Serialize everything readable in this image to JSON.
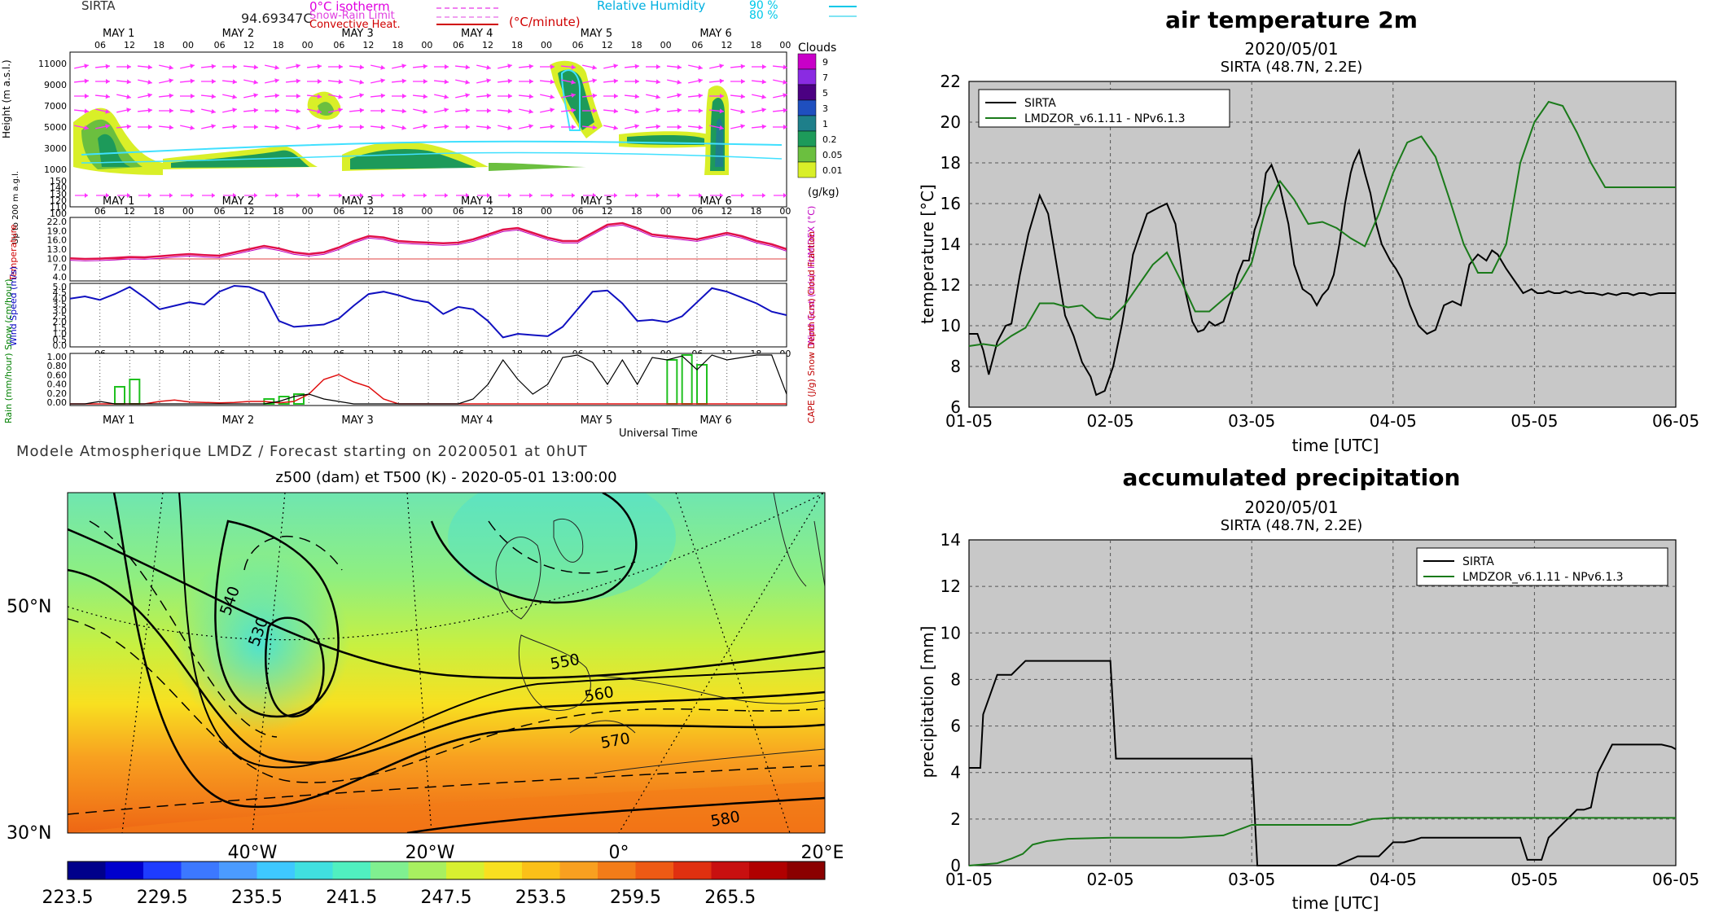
{
  "meteogram": {
    "header": {
      "station": "SIRTA",
      "value": "94.69347C",
      "legend_left": [
        "0°C isotherm",
        "Snow-Rain Limit",
        "Convective Heat."
      ],
      "legend_unit": "(°C/minute)",
      "legend_right": "Relative Humidity",
      "rh_levels": [
        "90 %",
        "80 %"
      ]
    },
    "day_labels": [
      "MAY 1",
      "MAY 2",
      "MAY 3",
      "MAY 4",
      "MAY 5",
      "MAY 6"
    ],
    "hour_labels": [
      "06",
      "12",
      "18",
      "00"
    ],
    "panel1": {
      "ylabel": "Height (m a.s.l.)",
      "yticks": [
        "11000",
        "9000",
        "7000",
        "5000",
        "3000",
        "1000"
      ],
      "ylabel_low": "Up to 200 m a.g.l.",
      "yticks_low": [
        "150",
        "140",
        "130",
        "120",
        "110",
        "100"
      ],
      "clouds_title": "Clouds",
      "clouds_scale": [
        "9",
        "7",
        "5",
        "3",
        "1",
        "0.2",
        "0.05",
        "0.01"
      ],
      "clouds_unit": "(g/kg)",
      "clouds_colors": [
        "#c800c8",
        "#8a2be2",
        "#4b0082",
        "#1f4fbf",
        "#1e7f8a",
        "#1d9a5a",
        "#6bbf3f",
        "#d9ef28"
      ]
    },
    "panel2": {
      "ylabel": "Temperature",
      "yticks": [
        "22.0",
        "19.0",
        "16.0",
        "13.0",
        "10.0",
        "7.0",
        "4.0"
      ],
      "right_label": "HUMIDEX (°C)",
      "temperature": [
        10.2,
        10.0,
        10.1,
        10.3,
        10.6,
        10.5,
        10.8,
        11.2,
        11.5,
        11.2,
        11.0,
        12.0,
        13.0,
        14.0,
        13.2,
        12.0,
        11.5,
        12.0,
        13.5,
        15.5,
        17.0,
        16.6,
        15.5,
        15.2,
        15.0,
        14.8,
        15.0,
        16.0,
        17.5,
        19.0,
        19.5,
        18.0,
        16.5,
        15.5,
        15.5,
        18.0,
        20.5,
        21.0,
        19.5,
        17.5,
        17.0,
        16.5,
        16.0,
        17.0,
        18.0,
        17.0,
        15.5,
        14.5,
        13.0
      ]
    },
    "panel3": {
      "ylabel": "Wind Speed (m/s)",
      "yticks": [
        "5.0",
        "4.5",
        "4.0",
        "3.5",
        "3.0",
        "2.5",
        "2.0",
        "1.5",
        "1.0",
        "0.5",
        "0.0"
      ],
      "right_label": "Wind Gust (m/s)",
      "wind": [
        3.9,
        4.1,
        3.8,
        4.3,
        4.9,
        4.0,
        3.0,
        3.3,
        3.6,
        3.4,
        4.5,
        5.0,
        4.9,
        4.4,
        2.0,
        1.5,
        1.6,
        1.7,
        2.2,
        3.3,
        4.3,
        4.5,
        4.2,
        3.8,
        3.6,
        2.6,
        3.2,
        3.0,
        2.0,
        0.6,
        0.9,
        0.8,
        0.7,
        1.5,
        3.0,
        4.5,
        4.6,
        3.5,
        2.0,
        2.1,
        1.9,
        2.4,
        3.6,
        4.8,
        4.5,
        4.0,
        3.5,
        2.8,
        2.5
      ]
    },
    "panel4": {
      "yticks": [
        "1.00",
        "0.80",
        "0.60",
        "0.40",
        "0.20",
        "0.00"
      ],
      "left_label": "Rain (mm/hour) Snow (cm/hour)",
      "right_label": "CAPE (J/g) Snow Depth (cm) Cloud Fraction",
      "xlabel": "Universal Time",
      "cloud_fraction": [
        0,
        0,
        0.05,
        0,
        0,
        0,
        0,
        0,
        0,
        0,
        0,
        0,
        0,
        0,
        0.05,
        0.15,
        0.2,
        0.1,
        0.05,
        0,
        0,
        0,
        0,
        0,
        0,
        0,
        0,
        0.1,
        0.4,
        0.9,
        0.5,
        0.2,
        0.4,
        0.95,
        1.0,
        0.85,
        0.4,
        0.9,
        0.4,
        0.95,
        0.9,
        0.98,
        0.7,
        1.0,
        0.9,
        0.95,
        1.0,
        1.0,
        0.2
      ],
      "cape": [
        0,
        0,
        0,
        0,
        0,
        0,
        0.05,
        0.08,
        0.04,
        0.03,
        0.02,
        0.03,
        0.05,
        0.05,
        0.02,
        0.05,
        0.2,
        0.5,
        0.6,
        0.45,
        0.35,
        0.1,
        0,
        0,
        0,
        0,
        0,
        0,
        0,
        0,
        0,
        0,
        0,
        0,
        0,
        0,
        0,
        0,
        0,
        0,
        0,
        0,
        0,
        0,
        0,
        0,
        0,
        0,
        0
      ],
      "rain_bars": [
        {
          "i": 3,
          "v": 0.35
        },
        {
          "i": 4,
          "v": 0.5
        },
        {
          "i": 13,
          "v": 0.1
        },
        {
          "i": 14,
          "v": 0.15
        },
        {
          "i": 15,
          "v": 0.2
        },
        {
          "i": 40,
          "v": 0.9
        },
        {
          "i": 41,
          "v": 1.0
        },
        {
          "i": 42,
          "v": 0.8
        }
      ]
    },
    "footer": "Modele Atmospherique LMDZ / Forecast starting on 20200501 at 0hUT"
  },
  "map": {
    "title": "z500 (dam) et T500 (K) - 2020-05-01 13:00:00",
    "lat_labels": [
      "50°N",
      "30°N"
    ],
    "lon_labels": [
      "40°W",
      "20°W",
      "0°",
      "20°E"
    ],
    "contour_labels": [
      "540",
      "530",
      "550",
      "560",
      "570",
      "580"
    ],
    "colorbar_ticks": [
      "223.5",
      "229.5",
      "235.5",
      "241.5",
      "247.5",
      "253.5",
      "259.5",
      "265.5"
    ],
    "colorbar_colors": [
      "#00008b",
      "#0000cd",
      "#1e3cff",
      "#3c78ff",
      "#4b9bff",
      "#3ec8ff",
      "#40e0e0",
      "#50f0c0",
      "#80f090",
      "#a8f060",
      "#d8f030",
      "#f8e020",
      "#fbc018",
      "#f8a020",
      "#f37c18",
      "#ee5a14",
      "#e03010",
      "#c81010",
      "#b00000",
      "#8b0000"
    ]
  },
  "chart_data": [
    {
      "type": "line",
      "title": "air temperature 2m",
      "subtitle": "2020/05/01",
      "subtitle2": "SIRTA (48.7N, 2.2E)",
      "xlabel": "time [UTC]",
      "ylabel": "temperature [°C]",
      "ylim": [
        6,
        22
      ],
      "xlim": [
        0,
        5
      ],
      "x_tick_labels": [
        "01-05",
        "02-05",
        "03-05",
        "04-05",
        "05-05",
        "06-05"
      ],
      "y_tick_labels": [
        "6",
        "8",
        "10",
        "12",
        "14",
        "16",
        "18",
        "20",
        "22"
      ],
      "grid": true,
      "legend": "top-left",
      "series": [
        {
          "name": "SIRTA",
          "color": "#000000",
          "x": [
            0,
            0.06,
            0.1,
            0.14,
            0.2,
            0.26,
            0.3,
            0.36,
            0.42,
            0.5,
            0.56,
            0.62,
            0.68,
            0.74,
            0.8,
            0.86,
            0.9,
            0.96,
            1.02,
            1.08,
            1.12,
            1.16,
            1.2,
            1.26,
            1.34,
            1.4,
            1.46,
            1.52,
            1.58,
            1.62,
            1.66,
            1.7,
            1.74,
            1.8,
            1.86,
            1.9,
            1.94,
            1.98,
            2.02,
            2.06,
            2.1,
            2.14,
            2.2,
            2.26,
            2.3,
            2.36,
            2.42,
            2.46,
            2.5,
            2.54,
            2.58,
            2.62,
            2.66,
            2.7,
            2.72,
            2.76,
            2.8,
            2.84,
            2.88,
            2.92,
            2.98,
            3.02,
            3.06,
            3.12,
            3.18,
            3.24,
            3.3,
            3.36,
            3.42,
            3.48,
            3.54,
            3.6,
            3.66,
            3.7,
            3.74,
            3.8,
            3.86,
            3.92,
            3.98,
            4.02,
            4.06,
            4.1,
            4.14,
            4.18,
            4.22,
            4.26,
            4.32,
            4.36,
            4.42,
            4.48,
            4.52,
            4.58,
            4.62,
            4.66,
            4.7,
            4.74,
            4.78,
            4.82,
            4.88,
            4.94,
            5.0
          ],
          "y": [
            9.6,
            9.6,
            8.8,
            7.6,
            9.2,
            10.0,
            10.1,
            12.5,
            14.5,
            16.4,
            15.5,
            13.0,
            10.5,
            9.5,
            8.2,
            7.5,
            6.6,
            6.8,
            8.0,
            10.0,
            11.6,
            13.5,
            14.3,
            15.5,
            15.8,
            16.0,
            15.0,
            12.0,
            10.2,
            9.7,
            9.8,
            10.2,
            10.0,
            10.2,
            11.5,
            12.5,
            13.2,
            13.2,
            14.7,
            15.5,
            17.5,
            17.9,
            16.8,
            15.0,
            13.0,
            11.8,
            11.5,
            11.0,
            11.5,
            11.8,
            12.5,
            14.0,
            16.0,
            17.5,
            18.0,
            18.6,
            17.5,
            16.5,
            15.0,
            14.0,
            13.2,
            12.8,
            12.3,
            11.0,
            10.0,
            9.6,
            9.8,
            11.0,
            11.2,
            11.0,
            13.0,
            13.5,
            13.2,
            13.7,
            13.5,
            12.8,
            12.2,
            11.6,
            11.8,
            11.6,
            11.6,
            11.7,
            11.6,
            11.6,
            11.7,
            11.6,
            11.7,
            11.6,
            11.6,
            11.5,
            11.6,
            11.5,
            11.6,
            11.6,
            11.5,
            11.6,
            11.6,
            11.5,
            11.6,
            11.6,
            11.6
          ]
        },
        {
          "name": "LMDZOR_v6.1.11 - NPv6.1.3",
          "color": "#1a7a1a",
          "x": [
            0,
            0.1,
            0.2,
            0.3,
            0.4,
            0.5,
            0.6,
            0.7,
            0.8,
            0.9,
            1.0,
            1.1,
            1.2,
            1.3,
            1.4,
            1.5,
            1.6,
            1.7,
            1.8,
            1.9,
            2.0,
            2.1,
            2.2,
            2.3,
            2.4,
            2.5,
            2.6,
            2.7,
            2.8,
            2.9,
            3.0,
            3.1,
            3.2,
            3.3,
            3.4,
            3.5,
            3.6,
            3.7,
            3.8,
            3.9,
            4.0,
            4.1,
            4.2,
            4.3,
            4.4,
            4.5,
            4.6,
            4.7,
            4.8,
            4.9,
            5.0
          ],
          "y": [
            9.0,
            9.1,
            9.0,
            9.5,
            9.9,
            11.1,
            11.1,
            10.9,
            11.0,
            10.4,
            10.3,
            11.0,
            12.0,
            13.0,
            13.6,
            12.2,
            10.7,
            10.7,
            11.3,
            11.9,
            13.1,
            15.8,
            17.1,
            16.2,
            15.0,
            15.1,
            14.8,
            14.3,
            13.9,
            15.5,
            17.5,
            19.0,
            19.3,
            18.3,
            16.2,
            14.0,
            12.6,
            12.6,
            14.0,
            18.0,
            20.0,
            21.0,
            20.8,
            19.5,
            18.0,
            16.8,
            16.8,
            16.8,
            16.8,
            16.8,
            16.8
          ]
        }
      ]
    },
    {
      "type": "line",
      "title": "accumulated precipitation",
      "subtitle": "2020/05/01",
      "subtitle2": "SIRTA (48.7N, 2.2E)",
      "xlabel": "time [UTC]",
      "ylabel": "precipitation [mm]",
      "ylim": [
        0,
        14
      ],
      "xlim": [
        0,
        5
      ],
      "x_tick_labels": [
        "01-05",
        "02-05",
        "03-05",
        "04-05",
        "05-05",
        "06-05"
      ],
      "y_tick_labels": [
        "0",
        "2",
        "4",
        "6",
        "8",
        "10",
        "12",
        "14"
      ],
      "grid": true,
      "legend": "top-right",
      "series": [
        {
          "name": "SIRTA",
          "color": "#000000",
          "x": [
            0,
            0.08,
            0.1,
            0.2,
            0.3,
            0.35,
            0.4,
            1.0,
            1.04,
            1.08,
            2.0,
            2.04,
            2.5,
            2.6,
            2.75,
            2.8,
            2.9,
            3.0,
            3.08,
            3.15,
            3.2,
            3.9,
            3.95,
            3.97,
            4.05,
            4.1,
            4.2,
            4.3,
            4.35,
            4.4,
            4.45,
            4.55,
            4.7,
            4.9,
            4.97,
            5.0
          ],
          "y": [
            4.2,
            4.2,
            6.5,
            8.2,
            8.2,
            8.5,
            8.8,
            8.8,
            4.6,
            4.6,
            4.6,
            0,
            0,
            0,
            0.4,
            0.4,
            0.4,
            1.0,
            1.0,
            1.1,
            1.2,
            1.2,
            0.25,
            0.25,
            0.25,
            1.2,
            1.8,
            2.4,
            2.4,
            2.5,
            4.0,
            5.2,
            5.2,
            5.2,
            5.1,
            5.0
          ]
        },
        {
          "name": "LMDZOR_v6.1.11 - NPv6.1.3",
          "color": "#1a7a1a",
          "x": [
            0,
            0.2,
            0.3,
            0.38,
            0.45,
            0.55,
            0.7,
            1.0,
            1.5,
            1.8,
            2.0,
            2.7,
            2.85,
            3.0,
            3.5,
            4.0,
            4.5,
            5.0
          ],
          "y": [
            0,
            0.1,
            0.3,
            0.5,
            0.9,
            1.05,
            1.15,
            1.2,
            1.2,
            1.3,
            1.75,
            1.75,
            2.0,
            2.05,
            2.05,
            2.05,
            2.05,
            2.05
          ]
        }
      ]
    }
  ]
}
